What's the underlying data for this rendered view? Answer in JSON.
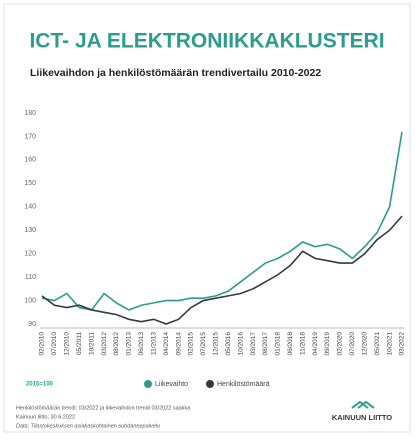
{
  "chart_data": {
    "type": "line",
    "title": "ICT- JA ELEKTRONIIKKAKLUSTERI",
    "subtitle": "Liikevaihdon ja henkilöstömäärän trendivertailu 2010-2022",
    "base_note": "2015=100",
    "categories": [
      "02/2010",
      "07/2010",
      "12/2010",
      "05/2011",
      "10/2011",
      "03/2012",
      "08/2012",
      "01/2013",
      "06/2013",
      "11/2013",
      "04/2014",
      "09/2014",
      "02/2015",
      "07/2015",
      "12/2015",
      "05/2016",
      "10/2016",
      "03/2017",
      "08/2017",
      "01/2018",
      "06/2018",
      "11/2018",
      "04/2019",
      "09/2019",
      "02/2020",
      "07/2020",
      "12/2020",
      "05/2021",
      "10/2021",
      "03/2022"
    ],
    "series": [
      {
        "name": "Liikevaihto",
        "color": "#2a9d8f",
        "values": [
          101,
          100,
          103,
          97,
          96,
          103,
          99,
          96,
          98,
          99,
          100,
          100,
          101,
          101,
          102,
          104,
          108,
          112,
          116,
          118,
          121,
          125,
          123,
          124,
          122,
          118,
          123,
          129,
          140,
          172
        ]
      },
      {
        "name": "Henkilöstömäärä",
        "color": "#333a40",
        "values": [
          102,
          98,
          97,
          98,
          96,
          95,
          94,
          92,
          91,
          92,
          90,
          92,
          97,
          100,
          101,
          102,
          103,
          105,
          108,
          111,
          115,
          121,
          118,
          117,
          116,
          116,
          120,
          126,
          130,
          136
        ]
      }
    ],
    "ylim": [
      90,
      180
    ],
    "yticks": [
      90,
      100,
      110,
      120,
      130,
      140,
      150,
      160,
      170,
      180
    ],
    "grid": false,
    "footnotes": [
      "Henkilöstömäärän trendi: 03/2022 ja liikevaihdon trendi 03/2022 saakka",
      "Kainuun liitto, 30.6.2022",
      "Data: Tilastokeskuksen asiakaskohtainen suhdannepalvelu"
    ],
    "logo": "KAINUUN LIITTO"
  }
}
